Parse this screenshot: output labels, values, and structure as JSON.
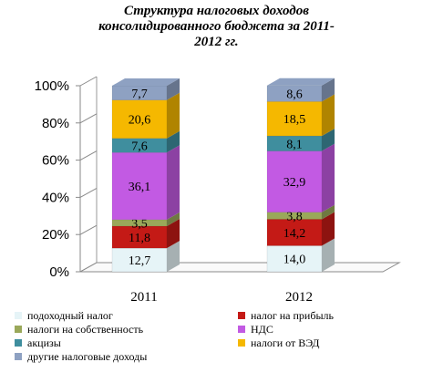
{
  "chart_data": {
    "type": "bar",
    "stacked": true,
    "percent": true,
    "title_lines": [
      "Структура налоговых доходов",
      "консолидированного бюджета за 2011-",
      "2012 гг."
    ],
    "categories": [
      "2011",
      "2012"
    ],
    "y_ticks": [
      "0%",
      "20%",
      "40%",
      "60%",
      "80%",
      "100%"
    ],
    "ylim": [
      0,
      100
    ],
    "series": [
      {
        "name": "подоходный налог",
        "values": [
          12.7,
          14.0
        ],
        "labels": [
          "12,7",
          "14,0"
        ],
        "color": "#e6f4f7",
        "text_color": "#000000"
      },
      {
        "name": "налог на прибыль",
        "values": [
          11.8,
          14.2
        ],
        "labels": [
          "11,8",
          "14,2"
        ],
        "color": "#c41a16",
        "text_color": "#000000"
      },
      {
        "name": "налоги на собственность",
        "values": [
          3.5,
          3.8
        ],
        "labels": [
          "3,5",
          "3,8"
        ],
        "color": "#9aa85a",
        "text_color": "#000000"
      },
      {
        "name": "НДС",
        "values": [
          36.1,
          32.9
        ],
        "labels": [
          "36,1",
          "32,9"
        ],
        "color": "#c25ae3",
        "text_color": "#000000"
      },
      {
        "name": "акцизы",
        "values": [
          7.6,
          8.1
        ],
        "labels": [
          "7,6",
          "8,1"
        ],
        "color": "#3f8e9e",
        "text_color": "#000000"
      },
      {
        "name": "налоги от ВЭД",
        "values": [
          20.6,
          18.5
        ],
        "labels": [
          "20,6",
          "18,5"
        ],
        "color": "#f5b800",
        "text_color": "#000000"
      },
      {
        "name": "другие налоговые доходы",
        "values": [
          7.7,
          8.6
        ],
        "labels": [
          "7,7",
          "8,6"
        ],
        "color": "#8ea1c2",
        "text_color": "#000000"
      }
    ],
    "legend_position": "bottom",
    "grid": false
  }
}
